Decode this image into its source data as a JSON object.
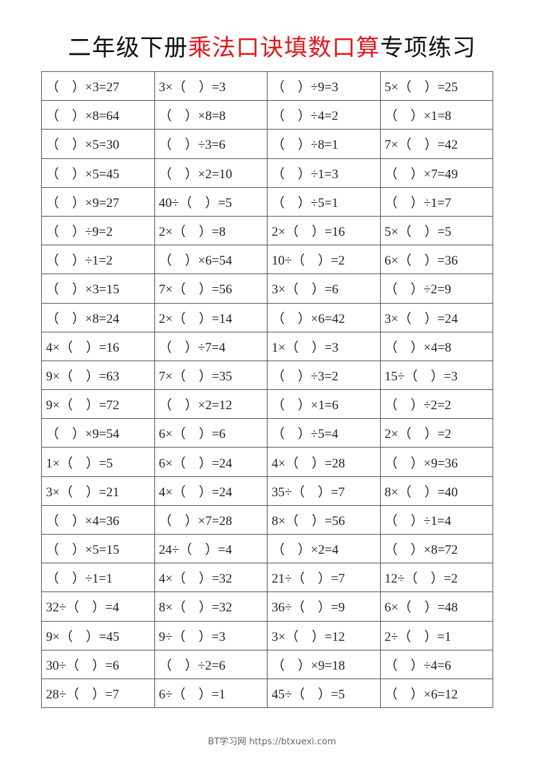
{
  "title": {
    "part1": "二年级下册",
    "part2": "乘法口诀填数口算",
    "part3": "专项练习",
    "highlight_color": "#e0191e"
  },
  "rows": [
    [
      "（　）×3=27",
      "3×（　）=3",
      "（　）÷9=3",
      "5×（　）=25"
    ],
    [
      "（　）×8=64",
      "（　）×8=8",
      "（　）÷4=2",
      "（　）×1=8"
    ],
    [
      "（　）×5=30",
      "（　）÷3=6",
      "（　）÷8=1",
      "7×（　）=42"
    ],
    [
      "（　）×5=45",
      "（　）×2=10",
      "（　）÷1=3",
      "（　）×7=49"
    ],
    [
      "（　）×9=27",
      "40÷（　）=5",
      "（　）÷5=1",
      "（　）÷1=7"
    ],
    [
      "（　）÷9=2",
      "2×（　）=8",
      "2×（　）=16",
      "5×（　）=5"
    ],
    [
      "（　）÷1=2",
      "（　）×6=54",
      "10÷（　）=2",
      "6×（　）=36"
    ],
    [
      "（　）×3=15",
      "7×（　）=56",
      "3×（　）=6",
      "（　）÷2=9"
    ],
    [
      "（　）×8=24",
      "2×（　）=14",
      "（　）×6=42",
      "3×（　）=24"
    ],
    [
      "4×（　）=16",
      "（　）÷7=4",
      "1×（　）=3",
      "（　）×4=8"
    ],
    [
      "9×（　）=63",
      "7×（　）=35",
      "（　）÷3=2",
      "15÷（　）=3"
    ],
    [
      "9×（　）=72",
      "（　）×2=12",
      "（　）×1=6",
      "（　）÷2=2"
    ],
    [
      "（　）×9=54",
      "6×（　）=6",
      "（　）÷5=4",
      "2×（　）=2"
    ],
    [
      "1×（　）=5",
      "6×（　）=24",
      "4×（　）=28",
      "（　）×9=36"
    ],
    [
      "3×（　）=21",
      "4×（　）=24",
      "35÷（　）=7",
      "8×（　）=40"
    ],
    [
      "（　）×4=36",
      "（　）×7=28",
      "8×（　）=56",
      "（　）÷1=4"
    ],
    [
      "（　）×5=15",
      "24÷（　）=4",
      "（　）×2=4",
      "（　）×8=72"
    ],
    [
      "（　）÷1=1",
      "4×（　）=32",
      "21÷（　）=7",
      "12÷（　）=2"
    ],
    [
      "32÷（　）=4",
      "8×（　）=32",
      "36÷（　）=9",
      "6×（　）=48"
    ],
    [
      "9×（　）=45",
      "9÷（　）=3",
      "3×（　）=12",
      "2÷（　）=1"
    ],
    [
      "30÷（　）=6",
      "（　）÷2=6",
      "（　）×9=18",
      "（　）÷4=6"
    ],
    [
      "28÷（　）=7",
      "6÷（　）=1",
      "45÷（　）=5",
      "（　）×6=12"
    ]
  ],
  "footer": "BT学习网 https://btxuexi.com"
}
